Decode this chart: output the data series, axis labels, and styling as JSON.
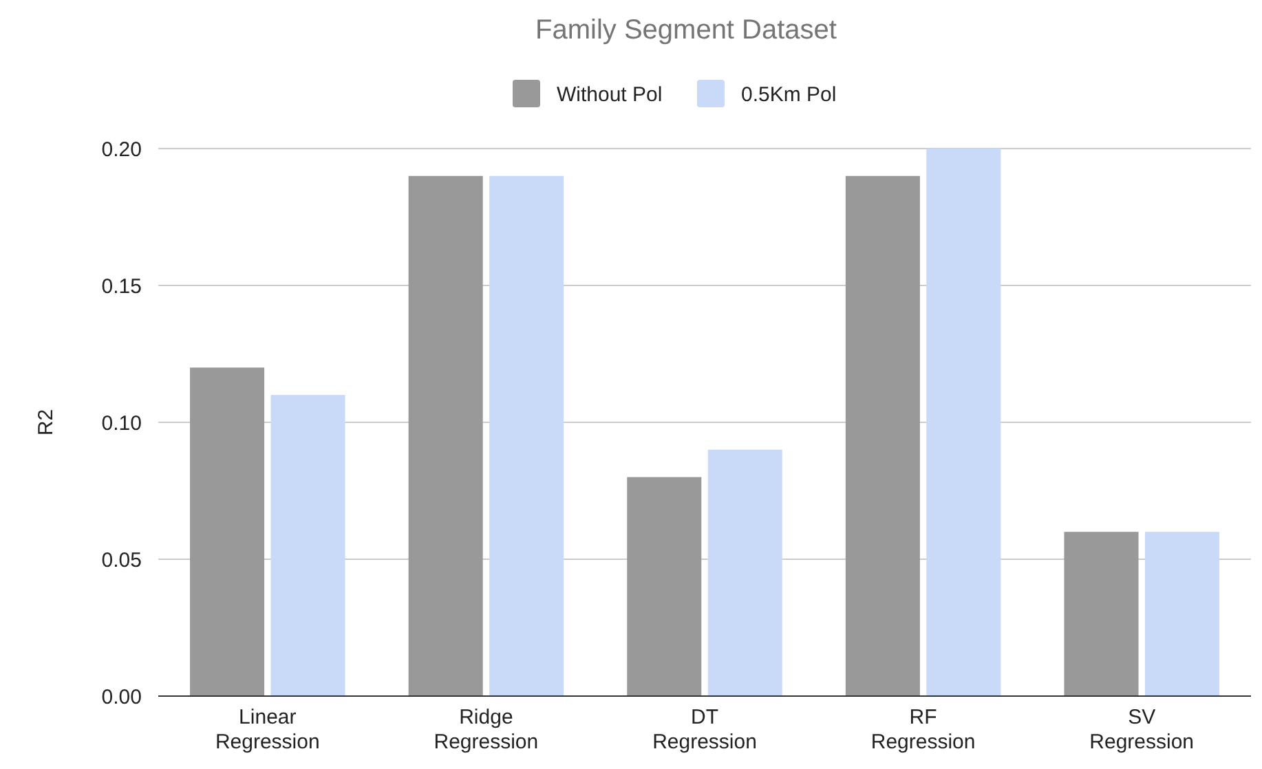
{
  "chart_data": {
    "type": "bar",
    "title": "Family Segment Dataset",
    "ylabel": "R2",
    "categories": [
      "Linear Regression",
      "Ridge Regression",
      "DT Regression",
      "RF Regression",
      "SV Regression"
    ],
    "series": [
      {
        "name": "Without Pol",
        "color": "#999999",
        "values": [
          0.12,
          0.19,
          0.08,
          0.19,
          0.06
        ]
      },
      {
        "name": "0.5Km Pol",
        "color": "#c9daf8",
        "values": [
          0.11,
          0.19,
          0.09,
          0.2,
          0.06
        ]
      }
    ],
    "ylim": [
      0,
      0.2
    ],
    "yticks": [
      {
        "value": 0,
        "label": "0.00"
      },
      {
        "value": 0.05,
        "label": "0.05"
      },
      {
        "value": 0.1,
        "label": "0.10"
      },
      {
        "value": 0.15,
        "label": "0.15"
      },
      {
        "value": 0.2,
        "label": "0.20"
      }
    ],
    "grid": "y",
    "legend": "top"
  }
}
